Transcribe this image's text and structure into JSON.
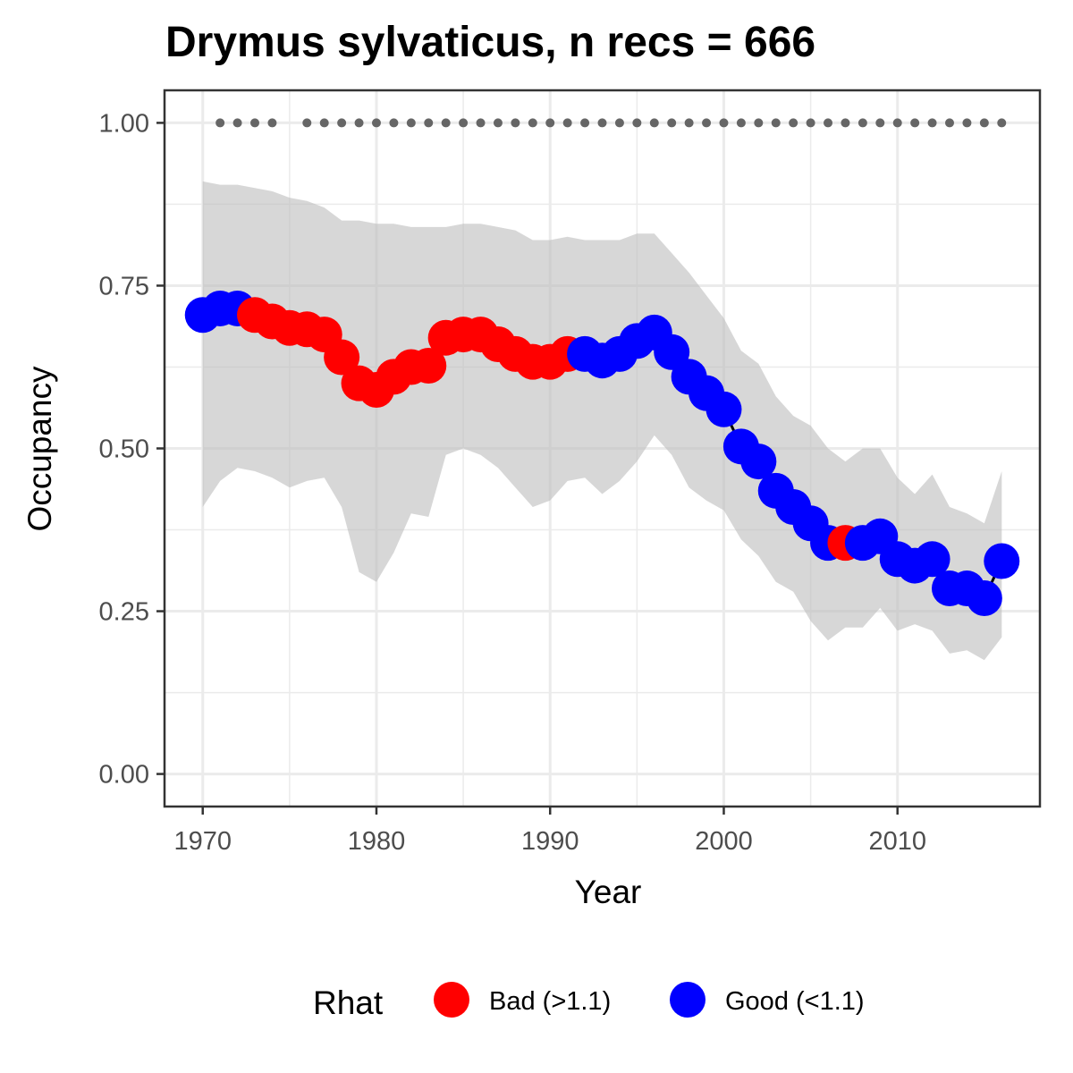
{
  "chart_data": {
    "type": "line",
    "title": "Drymus sylvaticus, n recs = 666",
    "xlabel": "Year",
    "ylabel": "Occupancy",
    "xlim": [
      1967.8,
      2018.2
    ],
    "ylim": [
      -0.05,
      1.05
    ],
    "x_ticks": [
      1970,
      1980,
      1990,
      2000,
      2010
    ],
    "y_ticks": [
      0.0,
      0.25,
      0.5,
      0.75,
      1.0
    ],
    "y_tick_labels": [
      "0.00",
      "0.25",
      "0.50",
      "0.75",
      "1.00"
    ],
    "grid": true,
    "legend": {
      "title": "Rhat",
      "position": "bottom",
      "entries": [
        {
          "key": "bad",
          "label": "Bad (>1.1)",
          "color": "#ff0000"
        },
        {
          "key": "good",
          "label": "Good (<1.1)",
          "color": "#0000ff"
        }
      ]
    },
    "series": {
      "x": [
        1970,
        1971,
        1972,
        1973,
        1974,
        1975,
        1976,
        1977,
        1978,
        1979,
        1980,
        1981,
        1982,
        1983,
        1984,
        1985,
        1986,
        1987,
        1988,
        1989,
        1990,
        1991,
        1992,
        1993,
        1994,
        1995,
        1996,
        1997,
        1998,
        1999,
        2000,
        2001,
        2002,
        2003,
        2004,
        2005,
        2006,
        2007,
        2008,
        2009,
        2010,
        2011,
        2012,
        2013,
        2014,
        2015,
        2016
      ],
      "y": [
        0.705,
        0.715,
        0.715,
        0.705,
        0.695,
        0.685,
        0.683,
        0.675,
        0.64,
        0.6,
        0.59,
        0.61,
        0.625,
        0.627,
        0.67,
        0.675,
        0.675,
        0.66,
        0.645,
        0.633,
        0.633,
        0.645,
        0.645,
        0.635,
        0.645,
        0.665,
        0.678,
        0.648,
        0.61,
        0.585,
        0.56,
        0.503,
        0.48,
        0.435,
        0.41,
        0.385,
        0.355,
        0.355,
        0.355,
        0.365,
        0.33,
        0.32,
        0.33,
        0.285,
        0.285,
        0.27,
        0.327
      ],
      "lower": [
        0.41,
        0.45,
        0.47,
        0.465,
        0.455,
        0.44,
        0.45,
        0.455,
        0.41,
        0.31,
        0.295,
        0.34,
        0.4,
        0.395,
        0.49,
        0.5,
        0.49,
        0.47,
        0.44,
        0.41,
        0.42,
        0.45,
        0.455,
        0.43,
        0.45,
        0.48,
        0.52,
        0.49,
        0.44,
        0.42,
        0.405,
        0.36,
        0.335,
        0.295,
        0.28,
        0.235,
        0.205,
        0.225,
        0.225,
        0.255,
        0.22,
        0.23,
        0.22,
        0.185,
        0.19,
        0.175,
        0.21
      ],
      "upper": [
        0.91,
        0.905,
        0.905,
        0.9,
        0.895,
        0.885,
        0.88,
        0.87,
        0.85,
        0.85,
        0.845,
        0.845,
        0.84,
        0.84,
        0.84,
        0.845,
        0.845,
        0.84,
        0.835,
        0.82,
        0.82,
        0.825,
        0.82,
        0.82,
        0.82,
        0.83,
        0.83,
        0.8,
        0.77,
        0.735,
        0.7,
        0.65,
        0.63,
        0.58,
        0.55,
        0.535,
        0.5,
        0.48,
        0.5,
        0.5,
        0.455,
        0.43,
        0.46,
        0.41,
        0.4,
        0.385,
        0.465
      ],
      "rhat": [
        "good",
        "good",
        "good",
        "bad",
        "bad",
        "bad",
        "bad",
        "bad",
        "bad",
        "bad",
        "bad",
        "bad",
        "bad",
        "bad",
        "bad",
        "bad",
        "bad",
        "bad",
        "bad",
        "bad",
        "bad",
        "bad",
        "good",
        "good",
        "good",
        "good",
        "good",
        "good",
        "good",
        "good",
        "good",
        "good",
        "good",
        "good",
        "good",
        "good",
        "good",
        "bad",
        "good",
        "good",
        "good",
        "good",
        "good",
        "good",
        "good",
        "good",
        "good"
      ]
    },
    "record_years": [
      1971,
      1972,
      1973,
      1974,
      1976,
      1977,
      1978,
      1979,
      1980,
      1981,
      1982,
      1983,
      1984,
      1985,
      1986,
      1987,
      1988,
      1989,
      1990,
      1991,
      1992,
      1993,
      1994,
      1995,
      1996,
      1997,
      1998,
      1999,
      2000,
      2001,
      2002,
      2003,
      2004,
      2005,
      2006,
      2007,
      2008,
      2009,
      2010,
      2011,
      2012,
      2013,
      2014,
      2015,
      2016
    ],
    "record_y": 1.0
  }
}
